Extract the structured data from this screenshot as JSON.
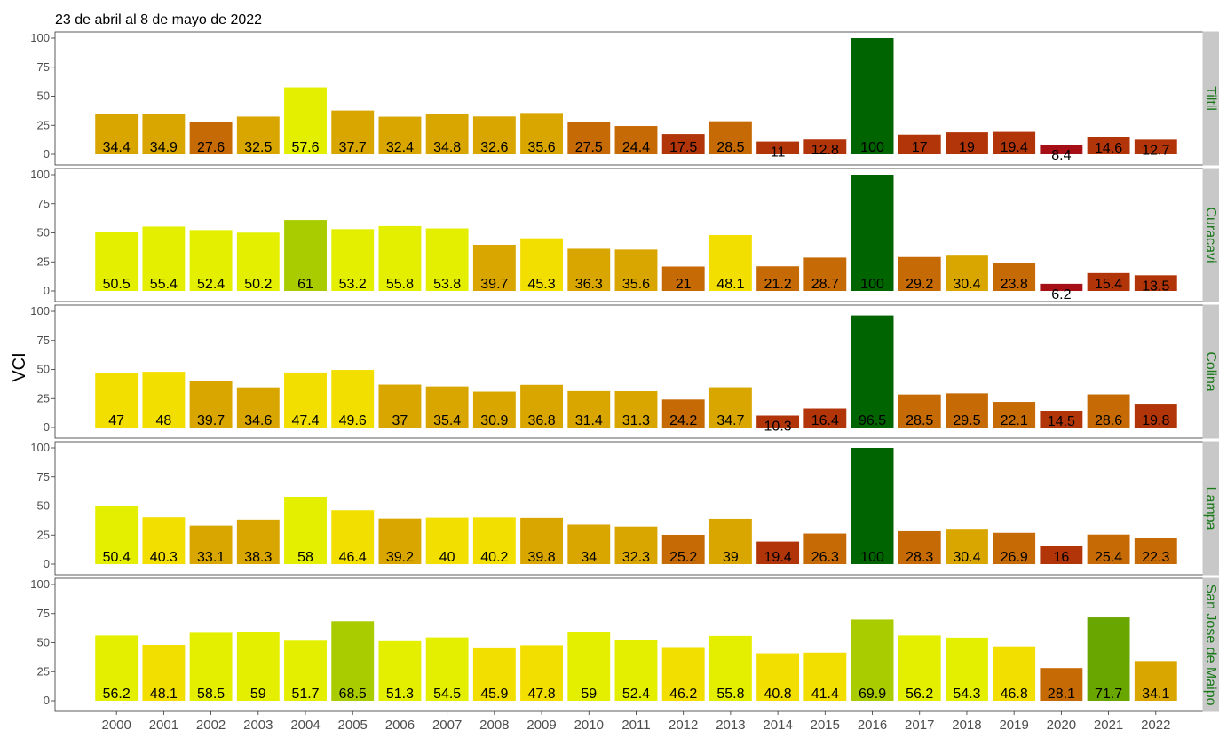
{
  "chart_data": {
    "type": "bar",
    "subtitle": "23 de abril al 8 de mayo de 2022",
    "ylabel": "VCI",
    "xlabel": "",
    "ylim": [
      0,
      100
    ],
    "yticks": [
      0,
      25,
      50,
      75,
      100
    ],
    "grid": false,
    "categories": [
      "2000",
      "2001",
      "2002",
      "2003",
      "2004",
      "2005",
      "2006",
      "2007",
      "2008",
      "2009",
      "2010",
      "2011",
      "2012",
      "2013",
      "2014",
      "2015",
      "2016",
      "2017",
      "2018",
      "2019",
      "2020",
      "2021",
      "2022"
    ],
    "color_scale": [
      {
        "min": 0,
        "max": 10,
        "color": "#a50f15"
      },
      {
        "min": 10,
        "max": 20,
        "color": "#b2350a"
      },
      {
        "min": 20,
        "max": 30,
        "color": "#c66a05"
      },
      {
        "min": 30,
        "max": 40,
        "color": "#d9a600"
      },
      {
        "min": 40,
        "max": 50,
        "color": "#f2df00"
      },
      {
        "min": 50,
        "max": 60,
        "color": "#e4ef00"
      },
      {
        "min": 60,
        "max": 70,
        "color": "#a8cc00"
      },
      {
        "min": 70,
        "max": 80,
        "color": "#6aa600"
      },
      {
        "min": 80,
        "max": 101,
        "color": "#006400"
      }
    ],
    "panels": [
      {
        "name": "Tiltil",
        "values": [
          34.4,
          34.9,
          27.6,
          32.5,
          57.6,
          37.7,
          32.4,
          34.8,
          32.6,
          35.6,
          27.5,
          24.4,
          17.5,
          28.5,
          11,
          12.8,
          100,
          17,
          19,
          19.4,
          8.4,
          14.6,
          12.7
        ]
      },
      {
        "name": "Curacavi",
        "values": [
          50.5,
          55.4,
          52.4,
          50.2,
          61,
          53.2,
          55.8,
          53.8,
          39.7,
          45.3,
          36.3,
          35.6,
          21,
          48.1,
          21.2,
          28.7,
          100,
          29.2,
          30.4,
          23.8,
          6.2,
          15.4,
          13.5
        ]
      },
      {
        "name": "Colina",
        "values": [
          47,
          48,
          39.7,
          34.6,
          47.4,
          49.6,
          37,
          35.4,
          30.9,
          36.8,
          31.4,
          31.3,
          24.2,
          34.7,
          10.3,
          16.4,
          96.5,
          28.5,
          29.5,
          22.1,
          14.5,
          28.6,
          19.8
        ]
      },
      {
        "name": "Lampa",
        "values": [
          50.4,
          40.3,
          33.1,
          38.3,
          58,
          46.4,
          39.2,
          40,
          40.2,
          39.8,
          34,
          32.3,
          25.2,
          39,
          19.4,
          26.3,
          100,
          28.3,
          30.4,
          26.9,
          16,
          25.4,
          22.3
        ]
      },
      {
        "name": "San Jose de Maipo",
        "values": [
          56.2,
          48.1,
          58.5,
          59,
          51.7,
          68.5,
          51.3,
          54.5,
          45.9,
          47.8,
          59,
          52.4,
          46.2,
          55.8,
          40.8,
          41.4,
          69.9,
          56.2,
          54.3,
          46.8,
          28.1,
          71.7,
          34.1
        ]
      }
    ]
  }
}
